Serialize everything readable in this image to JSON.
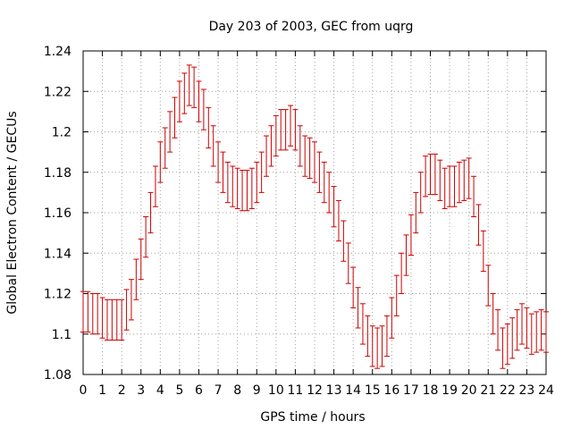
{
  "chart_data": {
    "type": "scatter",
    "title": "Day 203 of 2003, GEC from uqrg",
    "xlabel": "GPS time / hours",
    "ylabel": "Global Electron Content / GECUs",
    "xlim": [
      0,
      24
    ],
    "ylim": [
      1.08,
      1.24
    ],
    "xticks": [
      0,
      1,
      2,
      3,
      4,
      5,
      6,
      7,
      8,
      9,
      10,
      11,
      12,
      13,
      14,
      15,
      16,
      17,
      18,
      19,
      20,
      21,
      22,
      23,
      24
    ],
    "yticks": [
      1.08,
      1.1,
      1.12,
      1.14,
      1.16,
      1.18,
      1.2,
      1.22,
      1.24
    ],
    "ytick_labels": [
      "1.08",
      "1.1",
      "1.12",
      "1.14",
      "1.16",
      "1.18",
      "1.2",
      "1.22",
      "1.24"
    ],
    "grid": true,
    "error_bar_color": "#cc0000",
    "error_half_width": 0.01,
    "series": [
      {
        "x": [
          0,
          0.25,
          0.5,
          0.75,
          1,
          1.25,
          1.5,
          1.75,
          2,
          2.25,
          2.5,
          2.75,
          3,
          3.25,
          3.5,
          3.75,
          4,
          4.25,
          4.5,
          4.75,
          5,
          5.25,
          5.5,
          5.75,
          6,
          6.25,
          6.5,
          6.75,
          7,
          7.25,
          7.5,
          7.75,
          8,
          8.25,
          8.5,
          8.75,
          9,
          9.25,
          9.5,
          9.75,
          10,
          10.25,
          10.5,
          10.75,
          11,
          11.25,
          11.5,
          11.75,
          12,
          12.25,
          12.5,
          12.75,
          13,
          13.25,
          13.5,
          13.75,
          14,
          14.25,
          14.5,
          14.75,
          15,
          15.25,
          15.5,
          15.75,
          16,
          16.25,
          16.5,
          16.75,
          17,
          17.25,
          17.5,
          17.75,
          18,
          18.25,
          18.5,
          18.75,
          19,
          19.25,
          19.5,
          19.75,
          20,
          20.25,
          20.5,
          20.75,
          21,
          21.25,
          21.5,
          21.75,
          22,
          22.25,
          22.5,
          22.75,
          23,
          23.25,
          23.5,
          23.75,
          24
        ],
        "y": [
          1.111,
          1.111,
          1.11,
          1.11,
          1.108,
          1.107,
          1.107,
          1.107,
          1.107,
          1.112,
          1.117,
          1.127,
          1.137,
          1.148,
          1.16,
          1.173,
          1.185,
          1.192,
          1.2,
          1.207,
          1.215,
          1.219,
          1.223,
          1.222,
          1.215,
          1.211,
          1.202,
          1.193,
          1.185,
          1.18,
          1.175,
          1.173,
          1.172,
          1.171,
          1.171,
          1.172,
          1.175,
          1.18,
          1.188,
          1.193,
          1.198,
          1.201,
          1.201,
          1.203,
          1.201,
          1.193,
          1.188,
          1.187,
          1.185,
          1.18,
          1.175,
          1.17,
          1.163,
          1.156,
          1.146,
          1.135,
          1.123,
          1.113,
          1.105,
          1.099,
          1.094,
          1.093,
          1.094,
          1.099,
          1.108,
          1.119,
          1.13,
          1.139,
          1.149,
          1.16,
          1.17,
          1.178,
          1.179,
          1.179,
          1.176,
          1.172,
          1.173,
          1.173,
          1.175,
          1.176,
          1.177,
          1.168,
          1.154,
          1.141,
          1.124,
          1.11,
          1.102,
          1.093,
          1.095,
          1.098,
          1.102,
          1.105,
          1.103,
          1.1,
          1.101,
          1.102,
          1.101
        ]
      }
    ]
  }
}
